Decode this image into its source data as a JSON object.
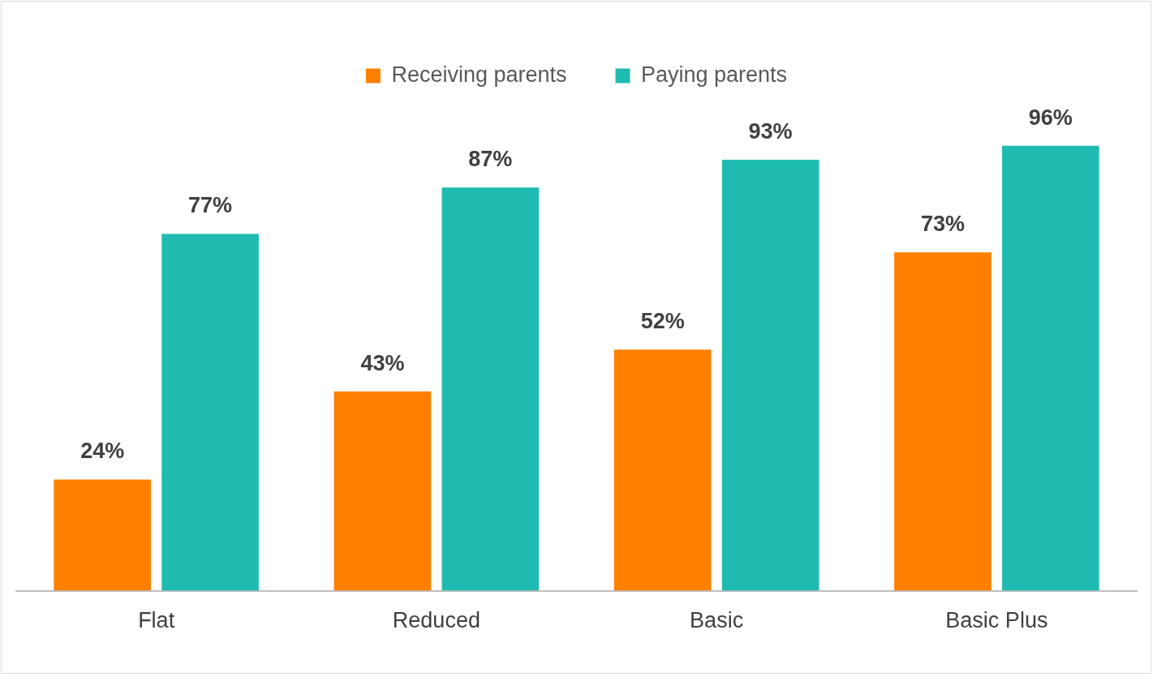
{
  "chart_data": {
    "type": "bar",
    "categories": [
      "Flat",
      "Reduced",
      "Basic",
      "Basic Plus"
    ],
    "series": [
      {
        "name": "Receiving parents",
        "color": "#ff7f00",
        "values": [
          24,
          43,
          52,
          73
        ],
        "value_labels": [
          "24%",
          "43%",
          "52%",
          "73%"
        ]
      },
      {
        "name": "Paying parents",
        "color": "#20bbb0",
        "values": [
          77,
          87,
          93,
          96
        ],
        "value_labels": [
          "77%",
          "87%",
          "93%",
          "96%"
        ]
      }
    ],
    "tick_labels": "x",
    "legend": "top"
  }
}
